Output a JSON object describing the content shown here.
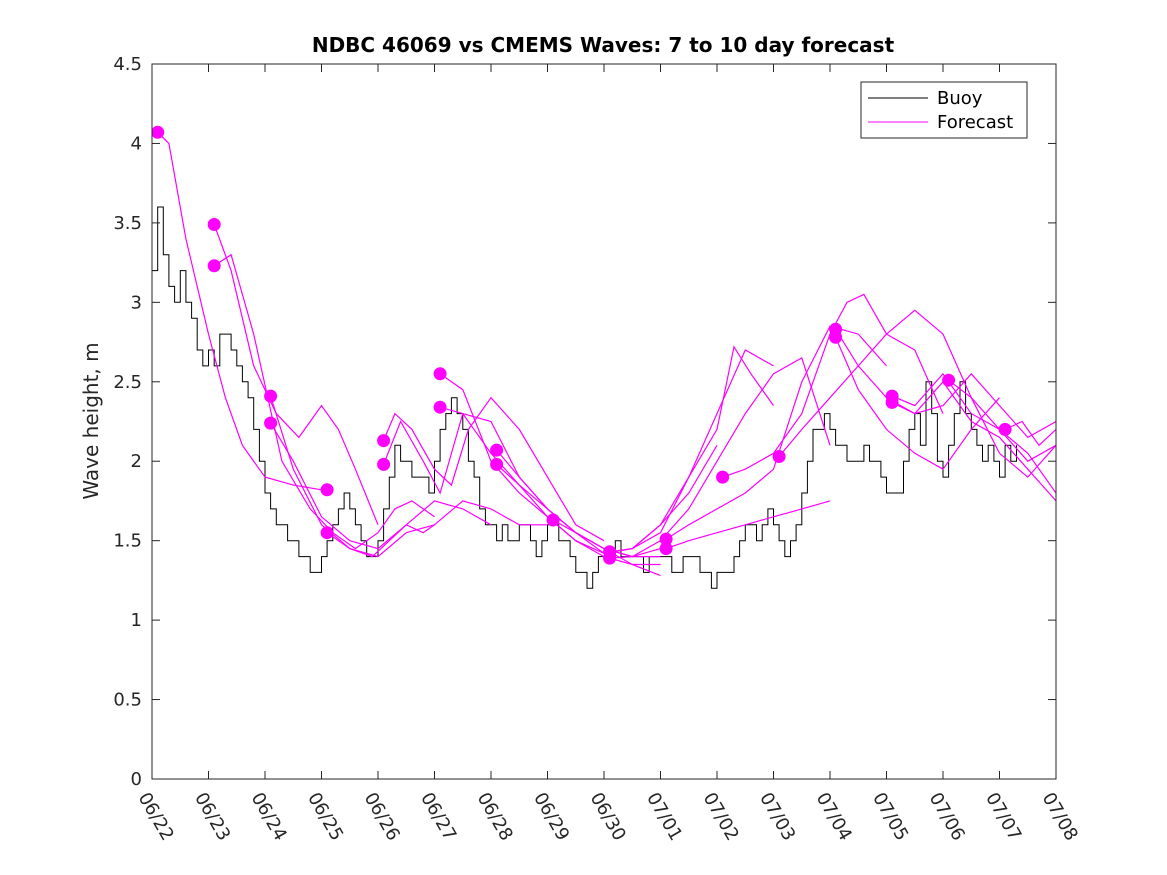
{
  "chart_data": {
    "type": "line",
    "title": "NDBC 46069 vs CMEMS Waves: 7 to 10 day forecast",
    "xlabel": "",
    "ylabel": "Wave height, m",
    "xlim": [
      0,
      16
    ],
    "ylim": [
      0,
      4.5
    ],
    "x_unit": "days since 06/22",
    "xticks": [
      0,
      1,
      2,
      3,
      4,
      5,
      6,
      7,
      8,
      9,
      10,
      11,
      12,
      13,
      14,
      15,
      16
    ],
    "xtick_labels": [
      "06/22",
      "06/23",
      "06/24",
      "06/25",
      "06/26",
      "06/27",
      "06/28",
      "06/29",
      "06/30",
      "07/01",
      "07/02",
      "07/03",
      "07/04",
      "07/05",
      "07/06",
      "07/07",
      "07/08"
    ],
    "yticks": [
      0,
      0.5,
      1,
      1.5,
      2,
      2.5,
      3,
      3.5,
      4,
      4.5
    ],
    "ytick_labels": [
      "0",
      "0.5",
      "1",
      "1.5",
      "2",
      "2.5",
      "3",
      "3.5",
      "4",
      "4.5"
    ],
    "grid": false,
    "legend": {
      "position": "top-right",
      "entries": [
        "Buoy",
        "Forecast"
      ]
    },
    "colors": {
      "buoy": "#000000",
      "forecast": "#ff00ff"
    },
    "buoy": {
      "name": "Buoy",
      "x": [
        0,
        0.1,
        0.2,
        0.3,
        0.4,
        0.5,
        0.6,
        0.7,
        0.8,
        0.9,
        1.0,
        1.1,
        1.2,
        1.3,
        1.4,
        1.5,
        1.6,
        1.7,
        1.8,
        1.9,
        2.0,
        2.1,
        2.2,
        2.3,
        2.4,
        2.5,
        2.6,
        2.7,
        2.8,
        2.9,
        3.0,
        3.1,
        3.2,
        3.3,
        3.4,
        3.5,
        3.6,
        3.7,
        3.8,
        3.9,
        4.0,
        4.1,
        4.2,
        4.3,
        4.4,
        4.5,
        4.6,
        4.7,
        4.8,
        4.9,
        5.0,
        5.1,
        5.2,
        5.3,
        5.4,
        5.5,
        5.6,
        5.7,
        5.8,
        5.9,
        6.0,
        6.1,
        6.2,
        6.3,
        6.4,
        6.5,
        6.6,
        6.7,
        6.8,
        6.9,
        7.0,
        7.1,
        7.2,
        7.3,
        7.4,
        7.5,
        7.6,
        7.7,
        7.8,
        7.9,
        8.0,
        8.1,
        8.2,
        8.3,
        8.4,
        8.5,
        8.6,
        8.7,
        8.8,
        8.9,
        9.0,
        9.1,
        9.2,
        9.3,
        9.4,
        9.5,
        9.6,
        9.7,
        9.8,
        9.9,
        10.0,
        10.1,
        10.2,
        10.3,
        10.4,
        10.5,
        10.6,
        10.7,
        10.8,
        10.9,
        11.0,
        11.1,
        11.2,
        11.3,
        11.4,
        11.5,
        11.6,
        11.7,
        11.8,
        11.9,
        12.0,
        12.1,
        12.2,
        12.3,
        12.4,
        12.5,
        12.6,
        12.7,
        12.8,
        12.9,
        13.0,
        13.1,
        13.2,
        13.3,
        13.4,
        13.5,
        13.6,
        13.7,
        13.8,
        13.9,
        14.0,
        14.1,
        14.2,
        14.3,
        14.4,
        14.5,
        14.6,
        14.7,
        14.8,
        14.9,
        15.0,
        15.1,
        15.2,
        15.3
      ],
      "y": [
        3.2,
        3.6,
        3.3,
        3.1,
        3.0,
        3.2,
        3.0,
        2.9,
        2.7,
        2.6,
        2.7,
        2.6,
        2.8,
        2.8,
        2.7,
        2.6,
        2.5,
        2.4,
        2.2,
        2.0,
        1.8,
        1.7,
        1.6,
        1.6,
        1.5,
        1.5,
        1.4,
        1.4,
        1.3,
        1.3,
        1.4,
        1.5,
        1.6,
        1.7,
        1.8,
        1.7,
        1.6,
        1.5,
        1.4,
        1.4,
        1.5,
        1.7,
        1.9,
        2.1,
        2.0,
        2.0,
        1.9,
        1.9,
        1.9,
        1.8,
        2.0,
        2.2,
        2.3,
        2.4,
        2.3,
        2.2,
        2.0,
        1.9,
        1.7,
        1.6,
        1.6,
        1.5,
        1.6,
        1.5,
        1.5,
        1.6,
        1.6,
        1.5,
        1.4,
        1.5,
        1.6,
        1.6,
        1.5,
        1.5,
        1.4,
        1.3,
        1.3,
        1.2,
        1.3,
        1.4,
        1.4,
        1.4,
        1.5,
        1.4,
        1.4,
        1.4,
        1.4,
        1.3,
        1.4,
        1.4,
        1.4,
        1.4,
        1.3,
        1.3,
        1.4,
        1.4,
        1.4,
        1.3,
        1.3,
        1.2,
        1.3,
        1.3,
        1.3,
        1.4,
        1.5,
        1.6,
        1.6,
        1.5,
        1.6,
        1.7,
        1.6,
        1.5,
        1.4,
        1.5,
        1.6,
        1.8,
        2.0,
        2.2,
        2.2,
        2.3,
        2.2,
        2.1,
        2.1,
        2.0,
        2.0,
        2.0,
        2.1,
        2.0,
        2.0,
        1.9,
        1.8,
        1.8,
        1.8,
        2.0,
        2.2,
        2.3,
        2.1,
        2.5,
        2.3,
        2.0,
        1.9,
        2.1,
        2.3,
        2.5,
        2.3,
        2.2,
        2.1,
        2.0,
        2.1,
        2.0,
        1.9,
        2.1,
        2.0,
        2.1
      ]
    },
    "forecast_series": [
      {
        "x": [
          0.1,
          0.3,
          0.6,
          1.0,
          1.3,
          1.6,
          2.0,
          2.5,
          3.0,
          3.1
        ],
        "y": [
          4.07,
          4.0,
          3.4,
          2.8,
          2.4,
          2.1,
          1.9,
          1.85,
          1.82,
          1.82
        ]
      },
      {
        "x": [
          1.1,
          1.4,
          1.8,
          2.2,
          2.6,
          3.0,
          3.3,
          3.6,
          4.0
        ],
        "y": [
          3.49,
          3.2,
          2.6,
          2.3,
          2.15,
          2.35,
          2.2,
          1.95,
          1.6
        ]
      },
      {
        "x": [
          1.1,
          1.4,
          1.8,
          2.3,
          2.8,
          3.2,
          3.6,
          4.0,
          4.3,
          4.6,
          5.0
        ],
        "y": [
          3.23,
          3.3,
          2.8,
          2.0,
          1.7,
          1.55,
          1.45,
          1.55,
          1.7,
          1.75,
          1.65
        ]
      },
      {
        "x": [
          2.1,
          2.5,
          3.0,
          3.5,
          4.0,
          4.5,
          5.0
        ],
        "y": [
          2.41,
          1.95,
          1.6,
          1.45,
          1.4,
          1.55,
          1.6
        ]
      },
      {
        "x": [
          2.1,
          2.5,
          3.0,
          3.5,
          4.0,
          4.5,
          5.0,
          5.5,
          6.0
        ],
        "y": [
          2.24,
          2.0,
          1.65,
          1.5,
          1.45,
          1.6,
          1.75,
          1.7,
          1.6
        ]
      },
      {
        "x": [
          3.1,
          3.5,
          3.9,
          4.2,
          4.5,
          4.8,
          5.0,
          5.5,
          6.0,
          6.5,
          7.0
        ],
        "y": [
          1.55,
          1.45,
          1.4,
          1.5,
          1.6,
          1.55,
          1.6,
          1.75,
          1.7,
          1.6,
          1.6
        ]
      },
      {
        "x": [
          4.1,
          4.3,
          4.6,
          5.0,
          5.3,
          5.6,
          6.0,
          6.5,
          7.0,
          7.5,
          8.0
        ],
        "y": [
          2.13,
          2.3,
          2.2,
          1.95,
          1.85,
          2.2,
          2.4,
          2.2,
          1.9,
          1.6,
          1.5
        ]
      },
      {
        "x": [
          4.1,
          4.4,
          4.8,
          5.1,
          5.5,
          6.0,
          6.5,
          7.0,
          7.5,
          8.0,
          8.5,
          9.0
        ],
        "y": [
          1.98,
          2.25,
          2.0,
          1.8,
          2.3,
          2.25,
          1.9,
          1.7,
          1.55,
          1.45,
          1.4,
          1.45
        ]
      },
      {
        "x": [
          5.1,
          5.5,
          6.0,
          6.5,
          7.0,
          7.5,
          8.0,
          8.5,
          9.0
        ],
        "y": [
          2.55,
          2.45,
          2.0,
          1.8,
          1.65,
          1.5,
          1.4,
          1.35,
          1.35
        ]
      },
      {
        "x": [
          5.1,
          5.5,
          6.0,
          6.5,
          7.0,
          7.5,
          8.0,
          8.5,
          9.0
        ],
        "y": [
          2.34,
          2.3,
          2.05,
          1.85,
          1.7,
          1.55,
          1.45,
          1.4,
          1.4
        ]
      },
      {
        "x": [
          6.1,
          6.5,
          7.0,
          7.5,
          8.0,
          8.5,
          9.0
        ],
        "y": [
          2.07,
          1.9,
          1.7,
          1.55,
          1.45,
          1.35,
          1.28
        ]
      },
      {
        "x": [
          6.1,
          6.5,
          7.0,
          7.5,
          8.0,
          8.5,
          9.0,
          9.5,
          10.0
        ],
        "y": [
          1.98,
          1.85,
          1.65,
          1.5,
          1.42,
          1.45,
          1.6,
          1.8,
          2.1
        ]
      },
      {
        "x": [
          7.1,
          7.5,
          8.0,
          8.5,
          9.0,
          9.5,
          10.0,
          10.5,
          11.0
        ],
        "y": [
          1.63,
          1.55,
          1.42,
          1.45,
          1.6,
          1.9,
          2.3,
          2.7,
          2.6
        ]
      },
      {
        "x": [
          8.1,
          8.5,
          9.0,
          9.5,
          10.0,
          10.3,
          10.6,
          11.0
        ],
        "y": [
          1.43,
          1.45,
          1.55,
          1.9,
          2.2,
          2.72,
          2.55,
          2.35
        ]
      },
      {
        "x": [
          8.1,
          8.5,
          9.0,
          9.5,
          10.0,
          10.5,
          11.0,
          11.5,
          12.0
        ],
        "y": [
          1.39,
          1.4,
          1.5,
          1.7,
          2.0,
          2.3,
          2.55,
          2.65,
          2.1
        ]
      },
      {
        "x": [
          9.1,
          9.5,
          10.0,
          10.5,
          11.0,
          11.5,
          12.0,
          12.5,
          13.0
        ],
        "y": [
          1.51,
          1.6,
          1.7,
          1.8,
          1.95,
          2.5,
          2.85,
          2.8,
          2.6
        ]
      },
      {
        "x": [
          9.1,
          9.5,
          10.0,
          10.5,
          11.0,
          11.5,
          12.0
        ],
        "y": [
          1.45,
          1.5,
          1.55,
          1.6,
          1.65,
          1.7,
          1.75
        ]
      },
      {
        "x": [
          10.1,
          10.5,
          11.0,
          11.5,
          12.0,
          12.3,
          12.6,
          13.0,
          13.5,
          14.0
        ],
        "y": [
          1.9,
          1.95,
          2.05,
          2.3,
          2.8,
          3.0,
          3.05,
          2.8,
          2.7,
          2.3
        ]
      },
      {
        "x": [
          11.1,
          11.5,
          12.0,
          12.5,
          13.0,
          13.5,
          14.0,
          14.5,
          15.0,
          15.5,
          16.0
        ],
        "y": [
          2.03,
          2.2,
          2.4,
          2.6,
          2.8,
          2.95,
          2.8,
          2.4,
          2.2,
          2.05,
          1.8
        ]
      },
      {
        "x": [
          12.1,
          12.5,
          13.0,
          13.5,
          14.0,
          14.5,
          15.0,
          15.5,
          16.0
        ],
        "y": [
          2.83,
          2.6,
          2.4,
          2.3,
          2.35,
          2.55,
          2.35,
          2.15,
          2.25
        ]
      },
      {
        "x": [
          12.1,
          12.5,
          13.0,
          13.5,
          14.0,
          14.5,
          15.0
        ],
        "y": [
          2.78,
          2.45,
          2.2,
          2.05,
          1.95,
          2.2,
          2.4
        ]
      },
      {
        "x": [
          13.1,
          13.5,
          14.0,
          14.5,
          15.0,
          15.5,
          16.0
        ],
        "y": [
          2.41,
          2.35,
          2.55,
          2.3,
          2.2,
          2.0,
          2.1
        ]
      },
      {
        "x": [
          13.1,
          13.5,
          14.0,
          14.5,
          15.0,
          15.5,
          16.0
        ],
        "y": [
          2.37,
          2.3,
          2.5,
          2.25,
          2.15,
          1.95,
          1.75
        ]
      },
      {
        "x": [
          14.1,
          14.5,
          15.0,
          15.5,
          16.0
        ],
        "y": [
          2.51,
          2.4,
          2.05,
          1.9,
          2.1
        ]
      },
      {
        "x": [
          15.1,
          15.4,
          15.7,
          16.0
        ],
        "y": [
          2.2,
          2.25,
          2.1,
          2.2
        ]
      }
    ],
    "forecast_markers": {
      "x": [
        0.1,
        1.1,
        1.1,
        2.1,
        2.1,
        3.1,
        3.1,
        4.1,
        4.1,
        5.1,
        5.1,
        6.1,
        6.1,
        7.1,
        8.1,
        8.1,
        9.1,
        9.1,
        10.1,
        11.1,
        12.1,
        12.1,
        13.1,
        13.1,
        14.1,
        15.1
      ],
      "y": [
        4.07,
        3.49,
        3.23,
        2.41,
        2.24,
        1.82,
        1.55,
        2.13,
        1.98,
        2.55,
        2.34,
        2.07,
        1.98,
        1.63,
        1.43,
        1.39,
        1.51,
        1.45,
        1.9,
        2.03,
        2.83,
        2.78,
        2.41,
        2.37,
        2.51,
        2.2
      ]
    }
  }
}
